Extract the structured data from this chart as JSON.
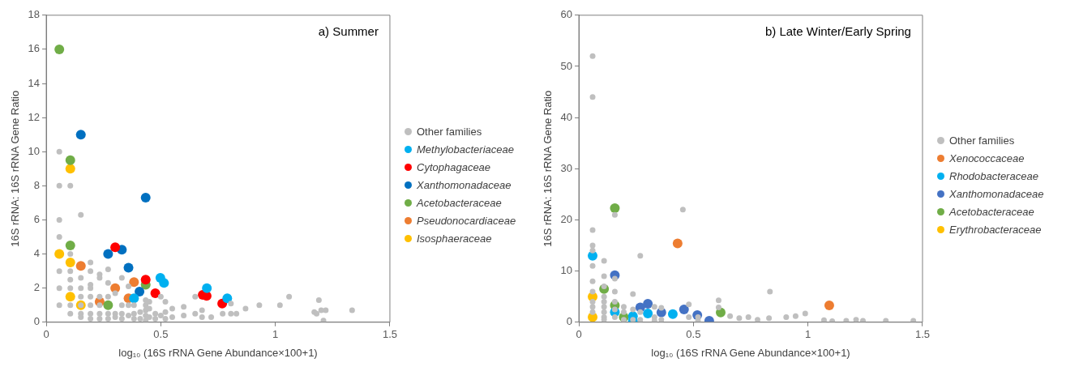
{
  "chart_data": [
    {
      "type": "scatter",
      "title": "a) Summer",
      "xlabel": "log₁₀ (16S rRNA Gene Abundance×100+1)",
      "ylabel": "16S rRNA: 16S rRNA Gene Ratio",
      "xlim": [
        0,
        1.5
      ],
      "xticks": [
        0,
        0.5,
        1,
        1.5
      ],
      "ylim": [
        0,
        18
      ],
      "yticks": [
        0,
        2,
        4,
        6,
        8,
        10,
        12,
        14,
        16,
        18
      ],
      "grid": false,
      "legend": "right",
      "marker": "circle",
      "series": [
        {
          "name": "Other families",
          "color": "#bfbfbf",
          "x": [
            0.057,
            0.057,
            0.057,
            0.057,
            0.057,
            0.057,
            0.057,
            0.105,
            0.105,
            0.105,
            0.105,
            0.105,
            0.105,
            0.105,
            0.151,
            0.151,
            0.151,
            0.151,
            0.151,
            0.151,
            0.151,
            0.193,
            0.193,
            0.193,
            0.193,
            0.193,
            0.193,
            0.193,
            0.193,
            0.233,
            0.233,
            0.233,
            0.233,
            0.233,
            0.233,
            0.27,
            0.27,
            0.27,
            0.27,
            0.27,
            0.301,
            0.301,
            0.301,
            0.33,
            0.33,
            0.33,
            0.33,
            0.359,
            0.359,
            0.359,
            0.383,
            0.383,
            0.383,
            0.41,
            0.41,
            0.434,
            0.434,
            0.434,
            0.434,
            0.434,
            0.45,
            0.45,
            0.45,
            0.476,
            0.476,
            0.5,
            0.5,
            0.52,
            0.52,
            0.52,
            0.55,
            0.55,
            0.6,
            0.6,
            0.65,
            0.65,
            0.68,
            0.68,
            0.72,
            0.77,
            0.806,
            0.806,
            0.83,
            0.87,
            0.93,
            1.02,
            1.06,
            1.17,
            1.18,
            1.19,
            1.2,
            1.21,
            1.22,
            1.335
          ],
          "values": [
            10,
            8,
            6,
            5,
            3,
            2,
            1,
            8,
            4,
            3,
            2.5,
            2,
            1,
            0.5,
            6.3,
            2.6,
            2,
            1.5,
            1,
            0.5,
            0.3,
            3.5,
            3,
            2.2,
            2,
            1.5,
            1,
            0.5,
            0.2,
            2.8,
            2.6,
            1.5,
            1,
            0.5,
            0.2,
            3.1,
            2.3,
            1.5,
            0.5,
            0.2,
            1.7,
            0.5,
            0.3,
            2.6,
            1,
            0.5,
            0.2,
            2.1,
            1,
            0.4,
            1,
            0.5,
            0.2,
            0.6,
            0.2,
            1.3,
            1,
            0.7,
            0.4,
            0.1,
            1.2,
            0.8,
            0.3,
            0.5,
            0.2,
            1.5,
            0.4,
            1.2,
            0.6,
            0.2,
            0.8,
            0.3,
            0.9,
            0.4,
            1.5,
            0.5,
            0.7,
            0.3,
            0.3,
            0.5,
            1.1,
            0.5,
            0.5,
            0.8,
            1,
            1,
            1.5,
            0.6,
            0.5,
            1.3,
            0.7,
            0.1,
            0.7,
            0.7
          ]
        },
        {
          "name": "Methylobacteriaceae",
          "color": "#00b0f0",
          "x": [
            0.498,
            0.514,
            0.383,
            0.701,
            0.79
          ],
          "values": [
            2.6,
            2.3,
            1.4,
            2,
            1.4
          ]
        },
        {
          "name": "Cytophagaceae",
          "color": "#ff0000",
          "x": [
            0.301,
            0.434,
            0.476,
            0.683,
            0.7,
            0.768
          ],
          "values": [
            4.4,
            2.5,
            1.7,
            1.6,
            1.55,
            1.1
          ]
        },
        {
          "name": "Xanthomonadaceae",
          "color": "#0070c0",
          "x": [
            0.151,
            0.434,
            0.33,
            0.27,
            0.359,
            0.407
          ],
          "values": [
            11,
            7.3,
            4.25,
            4,
            3.2,
            1.8
          ]
        },
        {
          "name": "Acetobacteraceae",
          "color": "#70ad47",
          "x": [
            0.057,
            0.105,
            0.105,
            0.434,
            0.27
          ],
          "values": [
            16,
            9.5,
            4.5,
            2.2,
            1
          ]
        },
        {
          "name": "Pseudonocardiaceae",
          "color": "#ed7d31",
          "x": [
            0.151,
            0.383,
            0.301,
            0.359,
            0.233
          ],
          "values": [
            3.3,
            2.35,
            2,
            1.4,
            1.2
          ]
        },
        {
          "name": "Isosphaeraceae",
          "color": "#ffc000",
          "x": [
            0.105,
            0.057,
            0.105,
            0.105,
            0.151
          ],
          "values": [
            9,
            4,
            3.5,
            1.5,
            1
          ]
        }
      ]
    },
    {
      "type": "scatter",
      "title": "b) Late Winter/Early Spring",
      "xlabel": "log₁₀ (16S rRNA Gene Abundance×100+1)",
      "ylabel": "16S rRNA: 16S rRNA Gene Ratio",
      "xlim": [
        0,
        1.5
      ],
      "xticks": [
        0,
        0.5,
        1,
        1.5
      ],
      "ylim": [
        0,
        60
      ],
      "yticks": [
        0,
        10,
        20,
        30,
        40,
        50,
        60
      ],
      "grid": false,
      "legend": "right",
      "marker": "circle",
      "series": [
        {
          "name": "Other families",
          "color": "#bfbfbf",
          "x": [
            0.06,
            0.06,
            0.06,
            0.06,
            0.06,
            0.06,
            0.06,
            0.06,
            0.06,
            0.06,
            0.06,
            0.11,
            0.11,
            0.11,
            0.11,
            0.11,
            0.11,
            0.11,
            0.11,
            0.11,
            0.157,
            0.157,
            0.157,
            0.157,
            0.157,
            0.157,
            0.196,
            0.196,
            0.196,
            0.236,
            0.236,
            0.236,
            0.268,
            0.268,
            0.268,
            0.33,
            0.33,
            0.33,
            0.36,
            0.36,
            0.454,
            0.48,
            0.48,
            0.52,
            0.52,
            0.61,
            0.61,
            0.66,
            0.7,
            0.74,
            0.78,
            0.83,
            0.834,
            0.905,
            0.946,
            0.988,
            1.07,
            1.106,
            1.167,
            1.21,
            1.24,
            1.34,
            1.46
          ],
          "values": [
            52,
            44,
            18,
            15,
            14,
            11,
            8,
            6,
            4,
            3,
            2,
            12,
            9,
            7,
            5,
            4,
            3,
            2,
            1,
            0.5,
            21,
            8.5,
            6,
            4,
            2.5,
            1,
            3,
            2,
            0.5,
            5.5,
            2.5,
            0.5,
            13,
            2,
            0.5,
            3,
            1,
            0.3,
            2.8,
            0.5,
            22,
            3.5,
            1,
            1,
            0.3,
            4.3,
            2.9,
            1.2,
            0.8,
            1,
            0.5,
            0.8,
            6,
            1,
            1.2,
            1.7,
            0.4,
            0.2,
            0.3,
            0.5,
            0.3,
            0.3,
            0.3
          ]
        },
        {
          "name": "Xenococcaceae",
          "color": "#ed7d31",
          "x": [
            0.431,
            1.093
          ],
          "values": [
            15.4,
            3.3
          ]
        },
        {
          "name": "Rhodobacteraceae",
          "color": "#00b0f0",
          "x": [
            0.06,
            0.157,
            0.236,
            0.236,
            0.301,
            0.41
          ],
          "values": [
            13,
            2,
            1.2,
            0.3,
            1.7,
            1.6
          ]
        },
        {
          "name": "Xanthomonadaceae",
          "color": "#4472c4",
          "x": [
            0.157,
            0.268,
            0.301,
            0.36,
            0.459,
            0.517,
            0.569
          ],
          "values": [
            9.2,
            2.9,
            3.6,
            1.9,
            2.5,
            1.4,
            0.3
          ]
        },
        {
          "name": "Acetobacteraceae",
          "color": "#70ad47",
          "x": [
            0.157,
            0.11,
            0.157,
            0.196,
            0.619
          ],
          "values": [
            22.3,
            6.5,
            3.3,
            1,
            1.9
          ]
        },
        {
          "name": "Erythrobacteraceae",
          "color": "#ffc000",
          "x": [
            0.06,
            0.06
          ],
          "values": [
            5,
            1
          ]
        }
      ]
    }
  ]
}
